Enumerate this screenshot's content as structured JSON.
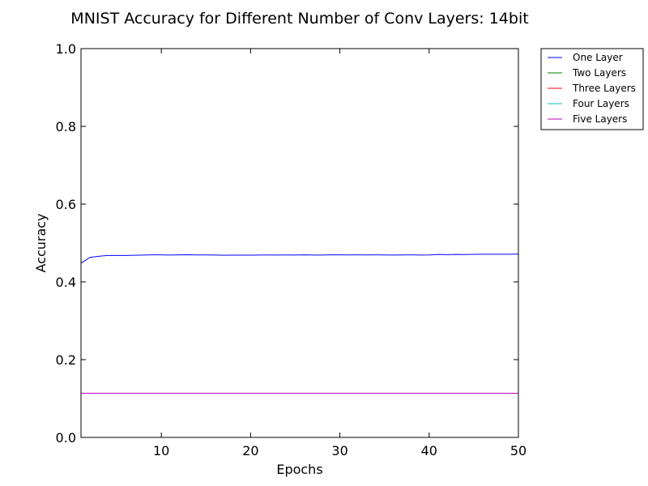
{
  "chart_data": {
    "type": "line",
    "title": "MNIST Accuracy for Different Number of Conv Layers: 14bit",
    "xlabel": "Epochs",
    "ylabel": "Accuracy",
    "xlim": [
      1,
      50
    ],
    "ylim": [
      0.0,
      1.0
    ],
    "xticks": [
      10,
      20,
      30,
      40,
      50
    ],
    "xtick_labels": [
      "10",
      "20",
      "30",
      "40",
      "50"
    ],
    "yticks": [
      0.0,
      0.2,
      0.4,
      0.6,
      0.8,
      1.0
    ],
    "ytick_labels": [
      "0.0",
      "0.2",
      "0.4",
      "0.6",
      "0.8",
      "1.0"
    ],
    "grid": false,
    "legend_position": "outside-top-right",
    "x": [
      1,
      2,
      3,
      4,
      5,
      6,
      7,
      8,
      9,
      10,
      11,
      12,
      13,
      14,
      15,
      16,
      17,
      18,
      19,
      20,
      21,
      22,
      23,
      24,
      25,
      26,
      27,
      28,
      29,
      30,
      31,
      32,
      33,
      34,
      35,
      36,
      37,
      38,
      39,
      40,
      41,
      42,
      43,
      44,
      45,
      46,
      47,
      48,
      49,
      50
    ],
    "series": [
      {
        "name": "One Layer",
        "color": "#0000ff",
        "values": [
          0.448,
          0.463,
          0.466,
          0.468,
          0.468,
          0.468,
          0.4685,
          0.469,
          0.4695,
          0.4695,
          0.469,
          0.4695,
          0.4698,
          0.4693,
          0.4692,
          0.4689,
          0.4685,
          0.4688,
          0.4688,
          0.4688,
          0.469,
          0.4692,
          0.469,
          0.4692,
          0.469,
          0.4695,
          0.469,
          0.469,
          0.4695,
          0.4695,
          0.4693,
          0.4695,
          0.4693,
          0.4695,
          0.4693,
          0.469,
          0.4693,
          0.4695,
          0.469,
          0.4693,
          0.4705,
          0.47,
          0.4705,
          0.4703,
          0.4708,
          0.471,
          0.471,
          0.471,
          0.471,
          0.4715
        ]
      },
      {
        "name": "Two Layers",
        "color": "#008000",
        "values": [
          0.1135,
          0.1135,
          0.1135,
          0.1135,
          0.1135,
          0.1135,
          0.1135,
          0.1135,
          0.1135,
          0.1135,
          0.1135,
          0.1135,
          0.1135,
          0.1135,
          0.1135,
          0.1135,
          0.1135,
          0.1135,
          0.1135,
          0.1135,
          0.1135,
          0.1135,
          0.1135,
          0.1135,
          0.1135,
          0.1135,
          0.1135,
          0.1135,
          0.1135,
          0.1135,
          0.1135,
          0.1135,
          0.1135,
          0.1135,
          0.1135,
          0.1135,
          0.1135,
          0.1135,
          0.1135,
          0.1135,
          0.1135,
          0.1135,
          0.1135,
          0.1135,
          0.1135,
          0.1135,
          0.1135,
          0.1135,
          0.1135,
          0.1135
        ]
      },
      {
        "name": "Three Layers",
        "color": "#ff0000",
        "values": [
          0.1135,
          0.1135,
          0.1135,
          0.1135,
          0.1135,
          0.1135,
          0.1135,
          0.1135,
          0.1135,
          0.1135,
          0.1135,
          0.1135,
          0.1135,
          0.1135,
          0.1135,
          0.1135,
          0.1135,
          0.1135,
          0.1135,
          0.1135,
          0.1135,
          0.1135,
          0.1135,
          0.1135,
          0.1135,
          0.1135,
          0.1135,
          0.1135,
          0.1135,
          0.1135,
          0.1135,
          0.1135,
          0.1135,
          0.1135,
          0.1135,
          0.1135,
          0.1135,
          0.1135,
          0.1135,
          0.1135,
          0.1135,
          0.1135,
          0.1135,
          0.1135,
          0.1135,
          0.1135,
          0.1135,
          0.1135,
          0.1135,
          0.1135
        ]
      },
      {
        "name": "Four Layers",
        "color": "#00bfbf",
        "values": [
          0.1135,
          0.1135,
          0.1135,
          0.1135,
          0.1135,
          0.1135,
          0.1135,
          0.1135,
          0.1135,
          0.1135,
          0.1135,
          0.1135,
          0.1135,
          0.1135,
          0.1135,
          0.1135,
          0.1135,
          0.1135,
          0.1135,
          0.1135,
          0.1135,
          0.1135,
          0.1135,
          0.1135,
          0.1135,
          0.1135,
          0.1135,
          0.1135,
          0.1135,
          0.1135,
          0.1135,
          0.1135,
          0.1135,
          0.1135,
          0.1135,
          0.1135,
          0.1135,
          0.1135,
          0.1135,
          0.1135,
          0.1135,
          0.1135,
          0.1135,
          0.1135,
          0.1135,
          0.1135,
          0.1135,
          0.1135,
          0.1135,
          0.1135
        ]
      },
      {
        "name": "Five Layers",
        "color": "#bf00bf",
        "values": [
          0.1135,
          0.1135,
          0.1135,
          0.1135,
          0.1135,
          0.1135,
          0.1135,
          0.1135,
          0.1135,
          0.1135,
          0.1135,
          0.1135,
          0.1135,
          0.1135,
          0.1135,
          0.1135,
          0.1135,
          0.1135,
          0.1135,
          0.1135,
          0.1135,
          0.1135,
          0.1135,
          0.1135,
          0.1135,
          0.1135,
          0.1135,
          0.1135,
          0.1135,
          0.1135,
          0.1135,
          0.1135,
          0.1135,
          0.1135,
          0.1135,
          0.1135,
          0.1135,
          0.1135,
          0.1135,
          0.1135,
          0.1135,
          0.1135,
          0.1135,
          0.1135,
          0.1135,
          0.1135,
          0.1135,
          0.1135,
          0.1135,
          0.1135
        ]
      }
    ]
  }
}
